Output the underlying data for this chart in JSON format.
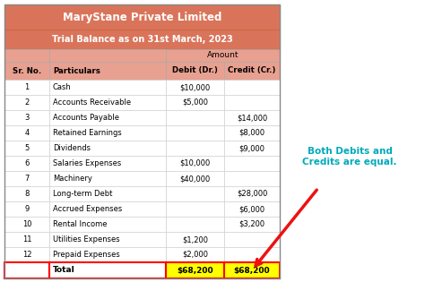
{
  "title1": "MaryStane Private Limited",
  "title2": "Trial Balance as on 31st March, 2023",
  "col_headers": [
    "Sr. No.",
    "Particulars",
    "Debit (Dr.)",
    "Credit (Cr.)"
  ],
  "amount_header": "Amount",
  "rows": [
    [
      "1",
      "Cash",
      "$10,000",
      ""
    ],
    [
      "2",
      "Accounts Receivable",
      "$5,000",
      ""
    ],
    [
      "3",
      "Accounts Payable",
      "",
      "$14,000"
    ],
    [
      "4",
      "Retained Earnings",
      "",
      "$8,000"
    ],
    [
      "5",
      "Dividends",
      "",
      "$9,000"
    ],
    [
      "6",
      "Salaries Expenses",
      "$10,000",
      ""
    ],
    [
      "7",
      "Machinery",
      "$40,000",
      ""
    ],
    [
      "8",
      "Long-term Debt",
      "",
      "$28,000"
    ],
    [
      "9",
      "Accrued Expenses",
      "",
      "$6,000"
    ],
    [
      "10",
      "Rental Income",
      "",
      "$3,200"
    ],
    [
      "11",
      "Utilities Expenses",
      "$1,200",
      ""
    ],
    [
      "12",
      "Prepaid Expenses",
      "$2,000",
      ""
    ]
  ],
  "total_row": [
    "",
    "Total",
    "$68,200",
    "$68,200"
  ],
  "header_bg": "#D9745A",
  "subheader_bg": "#E8A090",
  "col_header_bg": "#E8A090",
  "total_bg": "#FFFF00",
  "total_border_color": "#FF0000",
  "annotation_text": "Both Debits and\nCredits are equal.",
  "annotation_color": "#00AABB",
  "arrow_color": "#EE1111",
  "fig_width": 4.74,
  "fig_height": 3.15,
  "dpi": 100
}
